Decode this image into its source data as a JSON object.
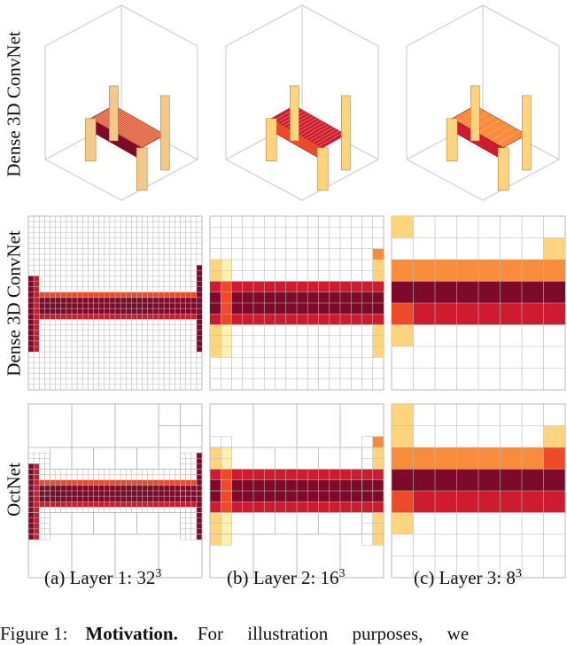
{
  "figure": {
    "row_labels": [
      "Dense 3D ConvNet",
      "Dense 3D ConvNet",
      "OctNet"
    ],
    "captions": [
      {
        "prefix": "(a) Layer 1: ",
        "base": "32",
        "exp": "3"
      },
      {
        "prefix": "(b) Layer 2: ",
        "base": "16",
        "exp": "3"
      },
      {
        "prefix": "(c) Layer 3: ",
        "base": "8",
        "exp": "3"
      }
    ],
    "figure_caption": {
      "label": "Figure 1:",
      "bold": "Motivation.",
      "text": "For illustration purposes, we"
    },
    "colors": {
      "dark": "#7d0a2a",
      "red": "#cf1b30",
      "orange_red": "#ee4a2a",
      "orange": "#f98c3a",
      "light": "#fed47c",
      "pale": "#fff0b0",
      "grid": "#b8b8b8",
      "cube": "#c8c8c8"
    }
  }
}
